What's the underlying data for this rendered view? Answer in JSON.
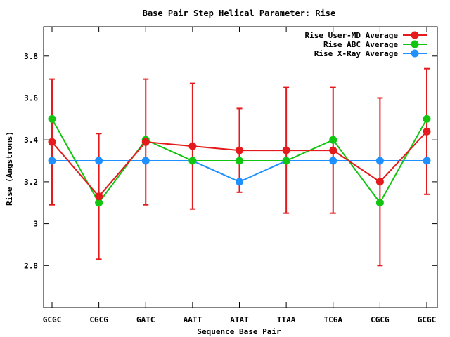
{
  "chart_data": {
    "type": "line",
    "title": "Base Pair Step Helical Parameter: Rise",
    "xlabel": "Sequence Base Pair",
    "ylabel": "Rise (Angstroms)",
    "ylim": [
      2.6,
      3.94
    ],
    "yticks": [
      2.8,
      3,
      3.2,
      3.4,
      3.6,
      3.8
    ],
    "ytick_labels": [
      "2.8",
      "3",
      "3.2",
      "3.4",
      "3.6",
      "3.8"
    ],
    "categories": [
      "GCGC",
      "CGCG",
      "GATC",
      "AATT",
      "ATAT",
      "TTAA",
      "TCGA",
      "CGCG",
      "GCGC"
    ],
    "legend_position": "top-right",
    "grid": false,
    "series": [
      {
        "name": "Rise User-MD Average",
        "color": "#e41a1c",
        "values": [
          3.39,
          3.13,
          3.39,
          3.37,
          3.35,
          3.35,
          3.35,
          3.2,
          3.44
        ],
        "error_low": [
          3.09,
          2.83,
          3.09,
          3.07,
          3.15,
          3.05,
          3.05,
          2.8,
          3.14
        ],
        "error_high": [
          3.69,
          3.43,
          3.69,
          3.67,
          3.55,
          3.65,
          3.65,
          3.6,
          3.74
        ]
      },
      {
        "name": "Rise ABC Average",
        "color": "#11c511",
        "values": [
          3.5,
          3.1,
          3.4,
          3.3,
          3.3,
          3.3,
          3.4,
          3.1,
          3.5
        ]
      },
      {
        "name": "Rise X-Ray Average",
        "color": "#1e90ff",
        "values": [
          3.3,
          3.3,
          3.3,
          3.3,
          3.2,
          3.3,
          3.3,
          3.3,
          3.3
        ]
      }
    ]
  }
}
